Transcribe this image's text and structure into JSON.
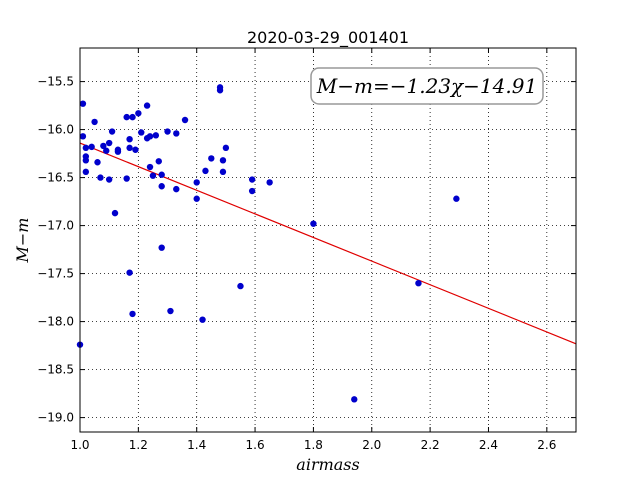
{
  "chart_data": {
    "type": "scatter",
    "title": "2020-03-29_001401",
    "xlabel": "airmass",
    "ylabel": "M−m",
    "xlim": [
      1.0,
      2.7
    ],
    "ylim": [
      -19.15,
      -15.15
    ],
    "y_inverted": true,
    "grid": true,
    "x_ticks": [
      1.0,
      1.2,
      1.4,
      1.6,
      1.8,
      2.0,
      2.2,
      2.4,
      2.6
    ],
    "x_tick_labels": [
      "1.0",
      "1.2",
      "1.4",
      "1.6",
      "1.8",
      "2.0",
      "2.2",
      "2.4",
      "2.6"
    ],
    "y_ticks": [
      -15.5,
      -16.0,
      -16.5,
      -17.0,
      -17.5,
      -18.0,
      -18.5,
      -19.0
    ],
    "y_tick_labels": [
      "−15.5",
      "−16.0",
      "−16.5",
      "−17.0",
      "−17.5",
      "−18.0",
      "−18.5",
      "−19.0"
    ],
    "annotation": "M−m=−1.23χ−14.91",
    "fit": {
      "slope": -1.23,
      "intercept": -14.91,
      "color": "#e00000"
    },
    "marker_color": "#0000cc",
    "points": [
      [
        1.0,
        -18.24
      ],
      [
        1.01,
        -15.73
      ],
      [
        1.01,
        -16.07
      ],
      [
        1.02,
        -16.19
      ],
      [
        1.02,
        -16.28
      ],
      [
        1.02,
        -16.32
      ],
      [
        1.02,
        -16.44
      ],
      [
        1.04,
        -16.18
      ],
      [
        1.05,
        -15.92
      ],
      [
        1.06,
        -16.34
      ],
      [
        1.07,
        -16.5
      ],
      [
        1.08,
        -16.17
      ],
      [
        1.09,
        -16.22
      ],
      [
        1.1,
        -16.14
      ],
      [
        1.1,
        -16.52
      ],
      [
        1.11,
        -16.02
      ],
      [
        1.12,
        -16.87
      ],
      [
        1.13,
        -16.23
      ],
      [
        1.13,
        -16.21
      ],
      [
        1.16,
        -16.51
      ],
      [
        1.16,
        -15.87
      ],
      [
        1.17,
        -16.1
      ],
      [
        1.17,
        -16.19
      ],
      [
        1.17,
        -17.49
      ],
      [
        1.18,
        -15.87
      ],
      [
        1.18,
        -17.92
      ],
      [
        1.19,
        -16.21
      ],
      [
        1.2,
        -15.83
      ],
      [
        1.21,
        -16.03
      ],
      [
        1.23,
        -15.75
      ],
      [
        1.23,
        -16.09
      ],
      [
        1.24,
        -16.07
      ],
      [
        1.24,
        -16.39
      ],
      [
        1.25,
        -16.48
      ],
      [
        1.26,
        -16.06
      ],
      [
        1.27,
        -16.33
      ],
      [
        1.28,
        -16.47
      ],
      [
        1.28,
        -16.59
      ],
      [
        1.28,
        -17.23
      ],
      [
        1.3,
        -16.02
      ],
      [
        1.31,
        -17.89
      ],
      [
        1.33,
        -16.04
      ],
      [
        1.33,
        -16.62
      ],
      [
        1.36,
        -15.9
      ],
      [
        1.4,
        -16.55
      ],
      [
        1.4,
        -16.72
      ],
      [
        1.42,
        -17.98
      ],
      [
        1.43,
        -16.43
      ],
      [
        1.45,
        -16.3
      ],
      [
        1.48,
        -15.56
      ],
      [
        1.48,
        -15.59
      ],
      [
        1.49,
        -16.44
      ],
      [
        1.49,
        -16.32
      ],
      [
        1.5,
        -16.19
      ],
      [
        1.55,
        -17.63
      ],
      [
        1.59,
        -16.52
      ],
      [
        1.59,
        -16.64
      ],
      [
        1.65,
        -16.55
      ],
      [
        1.8,
        -16.98
      ],
      [
        1.94,
        -18.81
      ],
      [
        2.16,
        -17.6
      ],
      [
        2.29,
        -16.72
      ]
    ]
  }
}
